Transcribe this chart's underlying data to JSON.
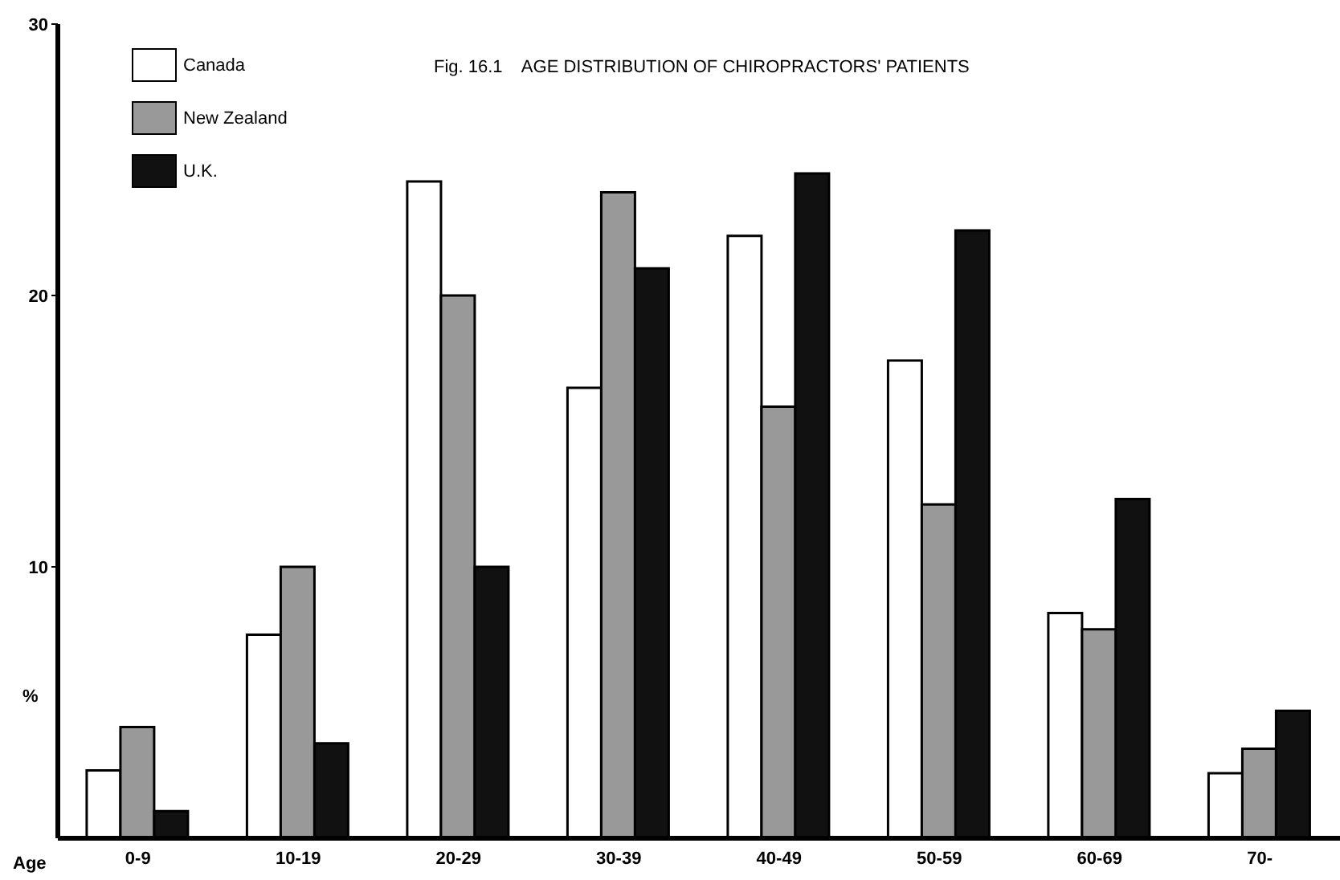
{
  "chart_data": {
    "type": "bar",
    "title": "Fig. 16.1    AGE DISTRIBUTION OF CHIROPRACTORS' PATIENTS",
    "xlabel": "Age",
    "ylabel": "%",
    "categories": [
      "0-9",
      "10-19",
      "20-29",
      "30-39",
      "40-49",
      "50-59",
      "60-69",
      "70-"
    ],
    "series": [
      {
        "name": "Canada",
        "color": "#ffffff",
        "values": [
          2.5,
          7.5,
          24.2,
          16.6,
          22.2,
          17.6,
          8.3,
          2.4
        ]
      },
      {
        "name": "New Zealand",
        "color": "#999999",
        "values": [
          4.1,
          10.0,
          20.0,
          23.8,
          15.9,
          12.3,
          7.7,
          3.3
        ]
      },
      {
        "name": "U.K.",
        "color": "#111111",
        "values": [
          1.0,
          3.5,
          10.0,
          21.0,
          24.5,
          22.4,
          12.5,
          4.7
        ]
      }
    ],
    "ylim": [
      0,
      30
    ],
    "yticks": [
      10,
      20,
      30
    ],
    "grid": false,
    "legend": "top left"
  }
}
